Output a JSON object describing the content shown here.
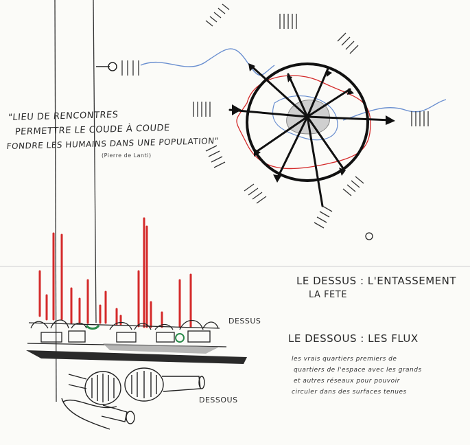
{
  "quote": {
    "lines": [
      "\"LIEU de RENCONTRES",
      "PERMETTRE le COUDE à COUDE",
      "FONDRE les HUMAINS dans une POPULATION\""
    ],
    "source": "(Pierre de Lanti)"
  },
  "labels": {
    "dessus_tag": "DESSUS",
    "dessous_tag": "DESSOUS"
  },
  "legend": {
    "dessus_heading": "le DESSUS : l'ENTASSEMENT",
    "dessus_subheading": "la FETE",
    "dessous_heading": "le DESSOUS : les FLUX",
    "dessous_note": [
      "les vrais quartiers premiers de",
      "quartiers de l'espace avec les grands",
      "et autres réseaux pour pouvoir",
      "circuler dans des surfaces tenues"
    ]
  },
  "colors": {
    "ink": "#1a1a1a",
    "red": "#d42a2a",
    "blue": "#6a8fd0",
    "green": "#2a8a4a",
    "grey_fill": "#cfcfcf",
    "paper": "#fbfbf8"
  }
}
